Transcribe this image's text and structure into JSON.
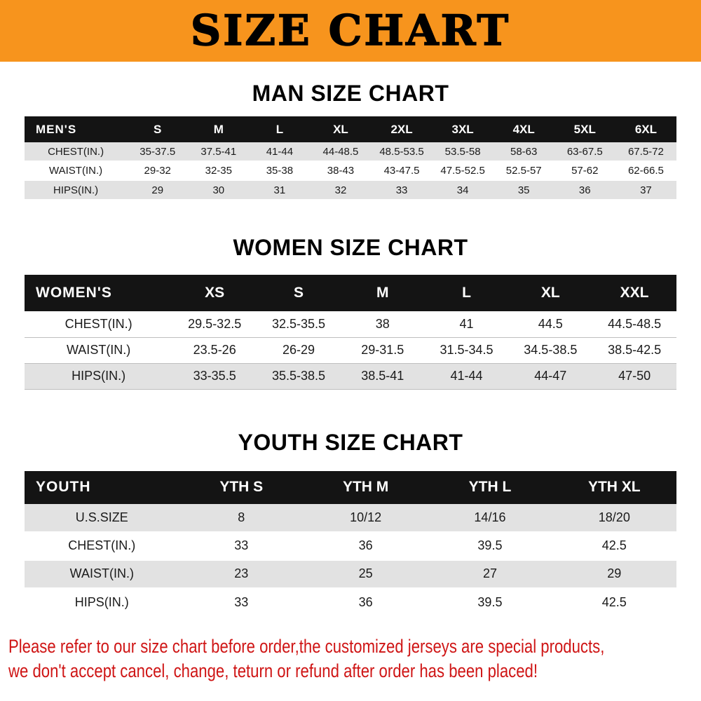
{
  "banner": {
    "title": "SIZE CHART",
    "bg_color": "#f7941d"
  },
  "chart_data": [
    {
      "type": "table",
      "title": "MAN SIZE CHART",
      "columns": [
        "MEN'S",
        "S",
        "M",
        "L",
        "XL",
        "2XL",
        "3XL",
        "4XL",
        "5XL",
        "6XL"
      ],
      "rows": [
        [
          "CHEST(IN.)",
          "35-37.5",
          "37.5-41",
          "41-44",
          "44-48.5",
          "48.5-53.5",
          "53.5-58",
          "58-63",
          "63-67.5",
          "67.5-72"
        ],
        [
          "WAIST(IN.)",
          "29-32",
          "32-35",
          "35-38",
          "38-43",
          "43-47.5",
          "47.5-52.5",
          "52.5-57",
          "57-62",
          "62-66.5"
        ],
        [
          "HIPS(IN.)",
          "29",
          "30",
          "31",
          "32",
          "33",
          "34",
          "35",
          "36",
          "37"
        ]
      ]
    },
    {
      "type": "table",
      "title": "WOMEN SIZE CHART",
      "columns": [
        "WOMEN'S",
        "XS",
        "S",
        "M",
        "L",
        "XL",
        "XXL"
      ],
      "rows": [
        [
          "CHEST(IN.)",
          "29.5-32.5",
          "32.5-35.5",
          "38",
          "41",
          "44.5",
          "44.5-48.5"
        ],
        [
          "WAIST(IN.)",
          "23.5-26",
          "26-29",
          "29-31.5",
          "31.5-34.5",
          "34.5-38.5",
          "38.5-42.5"
        ],
        [
          "HIPS(IN.)",
          "33-35.5",
          "35.5-38.5",
          "38.5-41",
          "41-44",
          "44-47",
          "47-50"
        ]
      ]
    },
    {
      "type": "table",
      "title": "YOUTH SIZE CHART",
      "columns": [
        "YOUTH",
        "YTH S",
        "YTH M",
        "YTH L",
        "YTH XL"
      ],
      "rows": [
        [
          "U.S.SIZE",
          "8",
          "10/12",
          "14/16",
          "18/20"
        ],
        [
          "CHEST(IN.)",
          "33",
          "36",
          "39.5",
          "42.5"
        ],
        [
          "WAIST(IN.)",
          "23",
          "25",
          "27",
          "29"
        ],
        [
          "HIPS(IN.)",
          "33",
          "36",
          "39.5",
          "42.5"
        ]
      ]
    }
  ],
  "footer": {
    "lines": [
      "Please refer to our size chart before order,the customized jerseys are special products,",
      "we don't accept cancel, change, teturn or refund after order has been placed!"
    ],
    "text_color": "#cf1515"
  }
}
